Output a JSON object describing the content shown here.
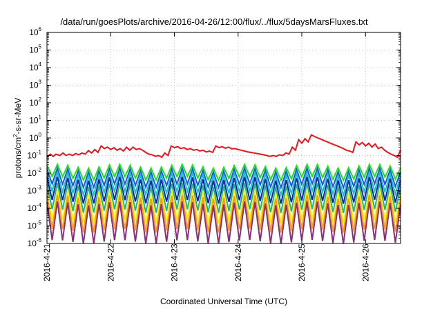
{
  "chart_data": {
    "type": "line",
    "title": "/data/run/goesPlots/archive/2016-04-26/12:00/flux/../flux/5daysMarsFluxes.txt",
    "xlabel": "Coordinated Universal Time (UTC)",
    "ylabel_parts": [
      "protons/cm",
      "2",
      "-s-sr-MeV"
    ],
    "y_scale": "log",
    "ylim": [
      1e-06,
      1000000.0
    ],
    "xlim": [
      0,
      5.55
    ],
    "x_tick_labels": [
      "2016-4-21",
      "2016-4-22",
      "2016-4-23",
      "2016-4-24",
      "2016-4-25",
      "2016-4-26"
    ],
    "x_tick_values": [
      0,
      1,
      2,
      3,
      4,
      5
    ],
    "y_tick_labels": [
      {
        "base": "10",
        "exp": "-6"
      },
      {
        "base": "10",
        "exp": "-5"
      },
      {
        "base": "10",
        "exp": "-4"
      },
      {
        "base": "10",
        "exp": "-3"
      },
      {
        "base": "10",
        "exp": "-2"
      },
      {
        "base": "10",
        "exp": "-1"
      },
      {
        "base": "10",
        "exp": "0"
      },
      {
        "base": "10",
        "exp": "1"
      },
      {
        "base": "10",
        "exp": "2"
      },
      {
        "base": "10",
        "exp": "3"
      },
      {
        "base": "10",
        "exp": "4"
      },
      {
        "base": "10",
        "exp": "5"
      },
      {
        "base": "10",
        "exp": "6"
      }
    ],
    "y_tick_exponents": [
      -6,
      -5,
      -4,
      -3,
      -2,
      -1,
      0,
      1,
      2,
      3,
      4,
      5,
      6
    ],
    "grid": true,
    "legend": "none",
    "series": [
      {
        "color": "#e8141c",
        "x": [
          0,
          0.05,
          0.1,
          0.14,
          0.2,
          0.25,
          0.3,
          0.35,
          0.4,
          0.45,
          0.5,
          0.55,
          0.6,
          0.65,
          0.7,
          0.75,
          0.8,
          0.85,
          0.9,
          0.95,
          1.0,
          1.05,
          1.1,
          1.15,
          1.2,
          1.25,
          1.3,
          1.35,
          1.4,
          1.45,
          1.5,
          1.55,
          1.6,
          1.65,
          1.7,
          1.75,
          1.8,
          1.85,
          1.9,
          1.95,
          2.0,
          2.05,
          2.1,
          2.15,
          2.2,
          2.25,
          2.3,
          2.35,
          2.4,
          2.45,
          2.5,
          2.55,
          2.6,
          2.65,
          2.7,
          2.75,
          2.8,
          2.85,
          2.9,
          2.95,
          3.0,
          3.05,
          3.1,
          3.15,
          3.2,
          3.25,
          3.3,
          3.35,
          3.4,
          3.45,
          3.5,
          3.55,
          3.6,
          3.65,
          3.7,
          3.75,
          3.8,
          3.85,
          3.9,
          3.95,
          4.0,
          4.05,
          4.1,
          4.15,
          4.2,
          4.25,
          4.3,
          4.35,
          4.4,
          4.45,
          4.5,
          4.55,
          4.6,
          4.65,
          4.7,
          4.75,
          4.8,
          4.85,
          4.9,
          4.95,
          5.0,
          5.05,
          5.1,
          5.15,
          5.2,
          5.25,
          5.3,
          5.35,
          5.4,
          5.45,
          5.5,
          5.55
        ],
        "y": [
          0.08,
          0.12,
          0.09,
          0.12,
          0.1,
          0.14,
          0.1,
          0.12,
          0.1,
          0.13,
          0.11,
          0.14,
          0.12,
          0.19,
          0.14,
          0.22,
          0.15,
          0.35,
          0.25,
          0.3,
          0.22,
          0.28,
          0.2,
          0.25,
          0.18,
          0.3,
          0.2,
          0.3,
          0.22,
          0.25,
          0.2,
          0.15,
          0.12,
          0.11,
          0.09,
          0.1,
          0.08,
          0.14,
          0.1,
          0.35,
          0.28,
          0.32,
          0.25,
          0.28,
          0.22,
          0.25,
          0.2,
          0.22,
          0.18,
          0.2,
          0.16,
          0.18,
          0.15,
          0.35,
          0.28,
          0.32,
          0.26,
          0.3,
          0.24,
          0.25,
          0.22,
          0.2,
          0.18,
          0.16,
          0.15,
          0.14,
          0.13,
          0.12,
          0.11,
          0.1,
          0.09,
          0.1,
          0.09,
          0.11,
          0.1,
          0.14,
          0.12,
          0.3,
          0.2,
          0.8,
          0.5,
          0.9,
          0.6,
          1.5,
          1.2,
          1.0,
          0.85,
          0.7,
          0.6,
          0.5,
          0.42,
          0.36,
          0.3,
          0.25,
          0.2,
          0.18,
          0.15,
          0.6,
          0.4,
          0.55,
          0.35,
          0.5,
          0.3,
          0.45,
          0.25,
          0.3,
          0.2,
          0.15,
          0.12,
          0.1,
          0.08,
          0.2
        ]
      },
      {
        "color": "#1fe01f",
        "base": 0.0115,
        "amp": 2.2,
        "decay": 0.45
      },
      {
        "color": "#1a58e6",
        "base": 0.0055,
        "amp": 2.8,
        "decay": 0.36
      },
      {
        "color": "#12c4c4",
        "base": 0.0025,
        "amp": 3.5,
        "decay": 0.3
      },
      {
        "color": "#1424a8",
        "base": 0.0011,
        "amp": 4.5,
        "decay": 0.22
      },
      {
        "color": "#22b48a",
        "base": 0.0004,
        "amp": 5.5,
        "decay": 0.18
      },
      {
        "color": "#f6f21c",
        "base": 0.00014,
        "amp": 7.0,
        "decay": 0.13
      },
      {
        "color": "#ff9a18",
        "base": 5.5e-05,
        "amp": 8.5,
        "decay": 0.1
      },
      {
        "color": "#8a2f78",
        "base": 1.8e-05,
        "amp": 11.0,
        "decay": 0.07
      }
    ]
  }
}
